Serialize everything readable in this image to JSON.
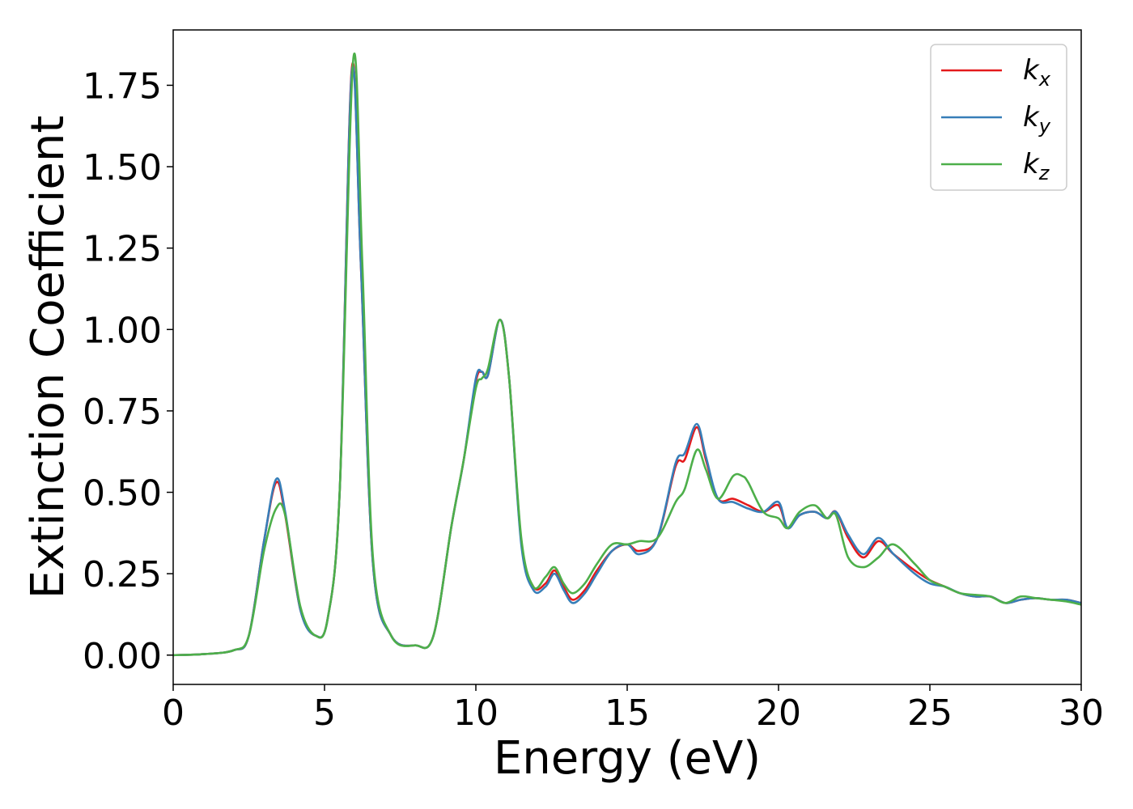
{
  "chart_data": {
    "type": "line",
    "title": "",
    "xlabel": "Energy (eV)",
    "ylabel": "Extinction Coefficient",
    "xlim": [
      0,
      30
    ],
    "ylim": [
      -0.09,
      1.92
    ],
    "xticks": [
      0,
      5,
      10,
      15,
      20,
      25,
      30
    ],
    "yticks": [
      0.0,
      0.25,
      0.5,
      0.75,
      1.0,
      1.25,
      1.5,
      1.75
    ],
    "xtick_labels": [
      "0",
      "5",
      "10",
      "15",
      "20",
      "25",
      "30"
    ],
    "ytick_labels": [
      "0.00",
      "0.25",
      "0.50",
      "0.75",
      "1.00",
      "1.25",
      "1.50",
      "1.75"
    ],
    "grid": false,
    "legend_position": "top-right",
    "series": [
      {
        "name": "k_x",
        "label_base": "k",
        "label_sub": "x",
        "color": "#e41a1c",
        "points": [
          [
            0,
            0.0
          ],
          [
            1,
            0.003
          ],
          [
            2,
            0.015
          ],
          [
            2.5,
            0.06
          ],
          [
            3.0,
            0.35
          ],
          [
            3.4,
            0.53
          ],
          [
            3.7,
            0.43
          ],
          [
            4.2,
            0.14
          ],
          [
            4.7,
            0.06
          ],
          [
            5.1,
            0.11
          ],
          [
            5.5,
            0.5
          ],
          [
            5.9,
            1.8
          ],
          [
            6.2,
            1.2
          ],
          [
            6.6,
            0.28
          ],
          [
            7.2,
            0.06
          ],
          [
            8.0,
            0.03
          ],
          [
            8.6,
            0.06
          ],
          [
            9.2,
            0.4
          ],
          [
            9.6,
            0.6
          ],
          [
            10.0,
            0.84
          ],
          [
            10.2,
            0.87
          ],
          [
            10.4,
            0.86
          ],
          [
            10.8,
            1.03
          ],
          [
            11.1,
            0.85
          ],
          [
            11.5,
            0.35
          ],
          [
            11.9,
            0.21
          ],
          [
            12.3,
            0.22
          ],
          [
            12.6,
            0.26
          ],
          [
            12.9,
            0.21
          ],
          [
            13.2,
            0.17
          ],
          [
            13.6,
            0.2
          ],
          [
            14.0,
            0.26
          ],
          [
            14.5,
            0.32
          ],
          [
            15.0,
            0.34
          ],
          [
            15.4,
            0.32
          ],
          [
            16.0,
            0.36
          ],
          [
            16.6,
            0.58
          ],
          [
            16.9,
            0.6
          ],
          [
            17.3,
            0.7
          ],
          [
            17.6,
            0.6
          ],
          [
            18.0,
            0.48
          ],
          [
            18.5,
            0.48
          ],
          [
            19.0,
            0.46
          ],
          [
            19.5,
            0.44
          ],
          [
            20.0,
            0.46
          ],
          [
            20.3,
            0.39
          ],
          [
            20.7,
            0.43
          ],
          [
            21.2,
            0.44
          ],
          [
            21.6,
            0.42
          ],
          [
            21.9,
            0.44
          ],
          [
            22.3,
            0.36
          ],
          [
            22.8,
            0.3
          ],
          [
            23.3,
            0.35
          ],
          [
            23.8,
            0.31
          ],
          [
            24.5,
            0.26
          ],
          [
            25.0,
            0.23
          ],
          [
            25.5,
            0.21
          ],
          [
            26.0,
            0.19
          ],
          [
            26.5,
            0.18
          ],
          [
            27.0,
            0.18
          ],
          [
            27.5,
            0.16
          ],
          [
            28.0,
            0.17
          ],
          [
            28.5,
            0.175
          ],
          [
            29.0,
            0.17
          ],
          [
            29.5,
            0.17
          ],
          [
            30.0,
            0.16
          ]
        ]
      },
      {
        "name": "k_y",
        "label_base": "k",
        "label_sub": "y",
        "color": "#377eb8",
        "points": [
          [
            0,
            0.0
          ],
          [
            1,
            0.003
          ],
          [
            2,
            0.015
          ],
          [
            2.5,
            0.06
          ],
          [
            3.0,
            0.35
          ],
          [
            3.4,
            0.54
          ],
          [
            3.7,
            0.44
          ],
          [
            4.2,
            0.14
          ],
          [
            4.7,
            0.06
          ],
          [
            5.1,
            0.11
          ],
          [
            5.5,
            0.5
          ],
          [
            5.9,
            1.79
          ],
          [
            6.2,
            1.2
          ],
          [
            6.6,
            0.28
          ],
          [
            7.2,
            0.06
          ],
          [
            8.0,
            0.03
          ],
          [
            8.6,
            0.06
          ],
          [
            9.2,
            0.4
          ],
          [
            9.6,
            0.6
          ],
          [
            10.0,
            0.85
          ],
          [
            10.2,
            0.87
          ],
          [
            10.4,
            0.86
          ],
          [
            10.8,
            1.03
          ],
          [
            11.1,
            0.85
          ],
          [
            11.5,
            0.34
          ],
          [
            11.9,
            0.2
          ],
          [
            12.3,
            0.21
          ],
          [
            12.6,
            0.25
          ],
          [
            12.9,
            0.2
          ],
          [
            13.2,
            0.16
          ],
          [
            13.6,
            0.19
          ],
          [
            14.0,
            0.25
          ],
          [
            14.5,
            0.32
          ],
          [
            15.0,
            0.34
          ],
          [
            15.4,
            0.31
          ],
          [
            16.0,
            0.36
          ],
          [
            16.6,
            0.59
          ],
          [
            16.9,
            0.62
          ],
          [
            17.3,
            0.71
          ],
          [
            17.6,
            0.61
          ],
          [
            18.0,
            0.48
          ],
          [
            18.5,
            0.47
          ],
          [
            19.0,
            0.45
          ],
          [
            19.5,
            0.44
          ],
          [
            20.0,
            0.47
          ],
          [
            20.3,
            0.39
          ],
          [
            20.7,
            0.43
          ],
          [
            21.2,
            0.44
          ],
          [
            21.6,
            0.42
          ],
          [
            21.9,
            0.44
          ],
          [
            22.3,
            0.37
          ],
          [
            22.8,
            0.31
          ],
          [
            23.3,
            0.36
          ],
          [
            23.8,
            0.31
          ],
          [
            24.5,
            0.25
          ],
          [
            25.0,
            0.22
          ],
          [
            25.5,
            0.21
          ],
          [
            26.0,
            0.19
          ],
          [
            26.5,
            0.18
          ],
          [
            27.0,
            0.18
          ],
          [
            27.5,
            0.16
          ],
          [
            28.0,
            0.17
          ],
          [
            28.5,
            0.175
          ],
          [
            29.0,
            0.17
          ],
          [
            29.5,
            0.17
          ],
          [
            30.0,
            0.16
          ]
        ]
      },
      {
        "name": "k_z",
        "label_base": "k",
        "label_sub": "z",
        "color": "#4daf4a",
        "points": [
          [
            0,
            0.0
          ],
          [
            1,
            0.003
          ],
          [
            2,
            0.015
          ],
          [
            2.5,
            0.06
          ],
          [
            3.0,
            0.32
          ],
          [
            3.4,
            0.45
          ],
          [
            3.7,
            0.43
          ],
          [
            4.2,
            0.15
          ],
          [
            4.7,
            0.06
          ],
          [
            5.1,
            0.11
          ],
          [
            5.5,
            0.5
          ],
          [
            5.95,
            1.83
          ],
          [
            6.25,
            1.2
          ],
          [
            6.6,
            0.3
          ],
          [
            7.2,
            0.06
          ],
          [
            8.0,
            0.03
          ],
          [
            8.6,
            0.06
          ],
          [
            9.2,
            0.4
          ],
          [
            9.6,
            0.6
          ],
          [
            10.0,
            0.82
          ],
          [
            10.2,
            0.85
          ],
          [
            10.4,
            0.88
          ],
          [
            10.8,
            1.03
          ],
          [
            11.1,
            0.85
          ],
          [
            11.5,
            0.36
          ],
          [
            11.9,
            0.21
          ],
          [
            12.3,
            0.24
          ],
          [
            12.6,
            0.27
          ],
          [
            12.9,
            0.22
          ],
          [
            13.2,
            0.19
          ],
          [
            13.6,
            0.22
          ],
          [
            14.0,
            0.28
          ],
          [
            14.5,
            0.34
          ],
          [
            15.0,
            0.34
          ],
          [
            15.4,
            0.35
          ],
          [
            16.0,
            0.36
          ],
          [
            16.6,
            0.47
          ],
          [
            16.9,
            0.51
          ],
          [
            17.3,
            0.63
          ],
          [
            17.6,
            0.57
          ],
          [
            18.0,
            0.48
          ],
          [
            18.5,
            0.55
          ],
          [
            18.8,
            0.55
          ],
          [
            19.0,
            0.53
          ],
          [
            19.5,
            0.44
          ],
          [
            20.0,
            0.42
          ],
          [
            20.3,
            0.39
          ],
          [
            20.7,
            0.44
          ],
          [
            21.2,
            0.46
          ],
          [
            21.6,
            0.42
          ],
          [
            21.9,
            0.43
          ],
          [
            22.3,
            0.3
          ],
          [
            22.8,
            0.27
          ],
          [
            23.3,
            0.3
          ],
          [
            23.8,
            0.34
          ],
          [
            24.5,
            0.28
          ],
          [
            25.0,
            0.23
          ],
          [
            25.5,
            0.21
          ],
          [
            26.0,
            0.19
          ],
          [
            26.5,
            0.185
          ],
          [
            27.0,
            0.18
          ],
          [
            27.5,
            0.16
          ],
          [
            28.0,
            0.18
          ],
          [
            28.5,
            0.175
          ],
          [
            29.0,
            0.17
          ],
          [
            29.5,
            0.165
          ],
          [
            30.0,
            0.155
          ]
        ]
      }
    ]
  }
}
